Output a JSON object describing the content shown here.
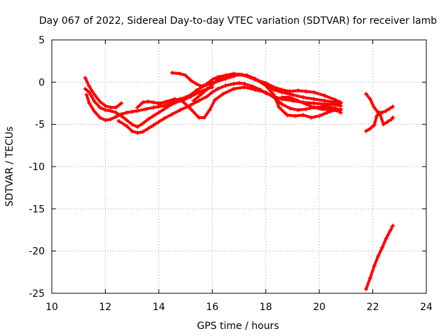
{
  "chart_data": {
    "type": "scatter",
    "title": "Day 067 of 2022, Sidereal Day-to-day VTEC variation (SDTVAR) for receiver lamb",
    "xlabel": "GPS time / hours",
    "ylabel": "SDTVAR / TECUs",
    "xlim": [
      10,
      24
    ],
    "ylim": [
      -25,
      5
    ],
    "xticks": [
      10,
      12,
      14,
      16,
      18,
      20,
      22,
      24
    ],
    "yticks": [
      5,
      0,
      -5,
      -10,
      -15,
      -20,
      -25
    ],
    "grid": true,
    "marker": "+",
    "color": "#ff0000",
    "series": [
      {
        "name": "s1",
        "x": [
          11.25,
          11.4,
          11.6,
          11.8,
          12.0,
          12.2,
          12.4,
          12.6
        ],
        "y": [
          0.5,
          -0.5,
          -1.5,
          -2.3,
          -2.8,
          -3.0,
          -3.0,
          -2.5
        ]
      },
      {
        "name": "s2",
        "x": [
          11.25,
          11.4,
          11.6,
          11.8,
          12.0,
          12.2,
          12.4,
          12.6,
          12.8,
          13.0,
          13.2,
          13.4,
          13.6,
          13.8,
          14.0,
          14.2,
          14.5,
          14.8,
          15.0,
          15.2,
          15.5,
          15.8,
          16.0
        ],
        "y": [
          -0.8,
          -1.2,
          -2.3,
          -3.0,
          -3.3,
          -3.4,
          -3.6,
          -4.0,
          -4.5,
          -5.0,
          -5.3,
          -4.9,
          -4.4,
          -4.0,
          -3.6,
          -3.2,
          -2.6,
          -2.2,
          -2.0,
          -1.7,
          -1.2,
          -0.8,
          -0.6
        ]
      },
      {
        "name": "s3",
        "x": [
          11.3,
          11.4,
          11.6,
          11.8,
          12.0,
          12.2,
          12.4,
          12.6,
          12.8,
          13.0,
          13.2,
          13.5,
          13.8,
          14.0,
          14.2,
          14.4,
          14.6
        ],
        "y": [
          -1.5,
          -2.5,
          -3.5,
          -4.2,
          -4.5,
          -4.4,
          -4.1,
          -3.8,
          -3.6,
          -3.5,
          -3.4,
          -3.2,
          -3.0,
          -2.9,
          -2.8,
          -2.6,
          -2.4
        ]
      },
      {
        "name": "s4",
        "x": [
          12.5,
          12.8,
          13.0,
          13.2,
          13.4,
          13.6,
          13.8,
          14.0,
          14.2,
          14.5,
          14.8,
          15.0,
          15.2,
          15.5,
          15.8,
          16.0,
          16.2,
          16.5,
          16.8,
          17.0,
          17.2,
          17.5,
          17.8,
          18.0,
          18.3,
          18.6,
          19.0,
          19.4,
          19.8,
          20.2,
          20.6,
          20.8
        ],
        "y": [
          -4.6,
          -5.2,
          -5.8,
          -6.0,
          -5.9,
          -5.5,
          -5.1,
          -4.7,
          -4.3,
          -3.8,
          -3.3,
          -3.0,
          -2.7,
          -2.2,
          -1.7,
          -1.2,
          -0.8,
          -0.4,
          -0.2,
          -0.1,
          -0.2,
          -0.5,
          -0.9,
          -1.3,
          -1.7,
          -2.0,
          -2.2,
          -2.4,
          -2.5,
          -2.6,
          -2.7,
          -2.8
        ]
      },
      {
        "name": "s5",
        "x": [
          13.2,
          13.4,
          13.6,
          13.8,
          14.0,
          14.2,
          14.5,
          14.8,
          15.0,
          15.2,
          15.4,
          15.6,
          15.8,
          16.0,
          16.2,
          16.5,
          16.8,
          17.0,
          17.3,
          17.6,
          18.0,
          18.3,
          18.6,
          19.0,
          19.4,
          19.8,
          20.2,
          20.6,
          20.8
        ],
        "y": [
          -3.0,
          -2.4,
          -2.3,
          -2.4,
          -2.5,
          -2.4,
          -2.2,
          -2.0,
          -1.8,
          -1.5,
          -1.0,
          -0.6,
          -0.3,
          -0.1,
          0.1,
          0.4,
          0.7,
          0.9,
          0.8,
          0.4,
          -0.4,
          -0.9,
          -1.2,
          -1.5,
          -1.8,
          -2.0,
          -2.2,
          -2.4,
          -2.5
        ]
      },
      {
        "name": "s6",
        "x": [
          14.5,
          14.8,
          15.0,
          15.2,
          15.4,
          15.6,
          15.8,
          16.0,
          16.2,
          16.5,
          16.8,
          17.0,
          17.3,
          17.6,
          18.0,
          18.3,
          18.6,
          18.9,
          19.2,
          19.5,
          19.8,
          20.2,
          20.6,
          20.8
        ],
        "y": [
          1.1,
          1.0,
          0.8,
          0.2,
          -0.2,
          -0.5,
          -0.2,
          0.3,
          0.6,
          0.8,
          1.0,
          0.9,
          0.7,
          0.3,
          -0.1,
          -0.6,
          -0.9,
          -1.1,
          -1.0,
          -1.1,
          -1.2,
          -1.6,
          -2.1,
          -2.4
        ]
      },
      {
        "name": "s7",
        "x": [
          14.0,
          14.3,
          14.6,
          14.9,
          15.2,
          15.5,
          15.7,
          15.9,
          16.1,
          16.4,
          16.8,
          17.2,
          17.6,
          18.0,
          18.3,
          18.6,
          18.9,
          19.2,
          19.5,
          19.8,
          20.2,
          20.6,
          20.8
        ],
        "y": [
          -2.6,
          -2.3,
          -2.0,
          -2.3,
          -3.2,
          -4.2,
          -4.2,
          -3.3,
          -2.1,
          -1.4,
          -0.8,
          -0.6,
          -0.9,
          -1.2,
          -1.8,
          -2.6,
          -3.1,
          -3.3,
          -3.2,
          -3.0,
          -2.9,
          -3.1,
          -3.3
        ]
      },
      {
        "name": "s8",
        "x": [
          15.3,
          15.6,
          15.9,
          16.2,
          16.5,
          16.8,
          17.1,
          17.4,
          17.7,
          18.0,
          18.3,
          18.5,
          18.8,
          19.1,
          19.4,
          19.7,
          20.0,
          20.3,
          20.6,
          20.8
        ],
        "y": [
          -2.2,
          -1.4,
          -0.6,
          0.3,
          0.6,
          0.8,
          0.9,
          0.6,
          0.2,
          -0.4,
          -1.5,
          -3.0,
          -3.9,
          -4.0,
          -3.9,
          -4.2,
          -4.0,
          -3.6,
          -3.3,
          -3.6
        ]
      },
      {
        "name": "s9",
        "x": [
          18.6,
          18.9,
          19.2,
          19.5,
          19.8,
          20.1,
          20.4,
          20.7,
          20.8
        ],
        "y": [
          -1.8,
          -1.8,
          -2.2,
          -2.6,
          -3.0,
          -3.2,
          -3.3,
          -3.3,
          -3.2
        ]
      },
      {
        "name": "s10",
        "x": [
          21.75,
          21.9,
          22.05,
          22.2,
          22.35,
          22.5,
          22.65,
          22.75
        ],
        "y": [
          -1.4,
          -2.0,
          -3.0,
          -3.6,
          -3.6,
          -3.4,
          -3.1,
          -2.9
        ]
      },
      {
        "name": "s11",
        "x": [
          21.75,
          21.9,
          22.05,
          22.15,
          22.25,
          22.4,
          22.55,
          22.7,
          22.75
        ],
        "y": [
          -5.8,
          -5.5,
          -5.1,
          -4.0,
          -3.6,
          -5.0,
          -4.7,
          -4.4,
          -4.2
        ]
      },
      {
        "name": "s12",
        "x": [
          21.75,
          21.9,
          22.05,
          22.2,
          22.35,
          22.5,
          22.65,
          22.75
        ],
        "y": [
          -24.5,
          -23.2,
          -21.8,
          -20.6,
          -19.6,
          -18.5,
          -17.6,
          -17.0
        ]
      }
    ]
  }
}
